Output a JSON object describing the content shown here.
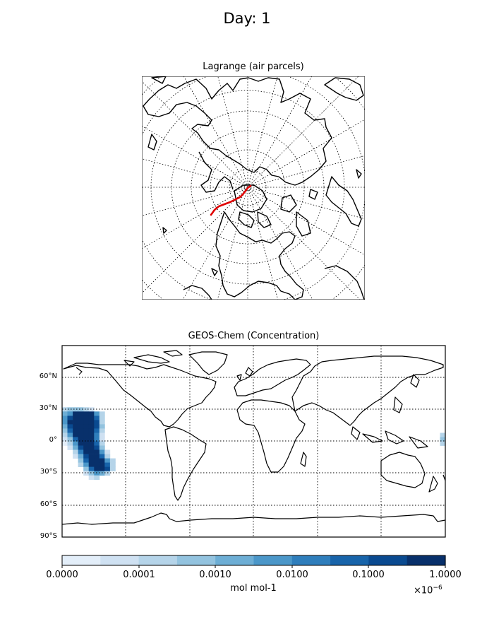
{
  "figure": {
    "suptitle": "Day: 1"
  },
  "lagrange_panel": {
    "title": "Lagrange (air parcels)",
    "projection": "north polar stereographic",
    "parcel_color": "#ff0000",
    "graticule": "dotted"
  },
  "geoschem_panel": {
    "title": "GEOS-Chem (Concentration)",
    "projection": "equirectangular",
    "lat_ticks": [
      "60°N",
      "30°N",
      "0°",
      "30°S",
      "60°S",
      "90°S"
    ]
  },
  "colorbar": {
    "tick_labels": [
      "0.0000",
      "0.0001",
      "0.0010",
      "0.0100",
      "0.1000",
      "1.0000"
    ],
    "label": "mol mol-1",
    "exponent": "×10",
    "exponent_power": "−6",
    "colormap": "Blues",
    "levels": [
      "#f7fbff",
      "#e3eef9",
      "#cfe1f2",
      "#b5d4e9",
      "#93c3df",
      "#6daed5",
      "#4b97c9",
      "#2f7ebc",
      "#1864aa",
      "#0a4a90",
      "#08306b"
    ]
  },
  "chart_data": {
    "type": "heatmap",
    "title": "GEOS-Chem (Concentration)",
    "variable_units": "mol mol-1 ×10^-6",
    "ylim": [
      -90,
      90
    ],
    "xlim": [
      -180,
      180
    ],
    "plume": [
      {
        "lat_range": [
          10,
          30
        ],
        "lon_range": [
          -180,
          -150
        ],
        "level": "max"
      },
      {
        "lat_range": [
          -10,
          10
        ],
        "lon_range": [
          -170,
          -150
        ],
        "level": "max"
      },
      {
        "lat_range": [
          -30,
          -10
        ],
        "lon_range": [
          -160,
          -140
        ],
        "level": "max"
      },
      {
        "lat_range": [
          -5,
          5
        ],
        "lon_range": [
          178,
          180
        ],
        "level": "low"
      }
    ]
  }
}
